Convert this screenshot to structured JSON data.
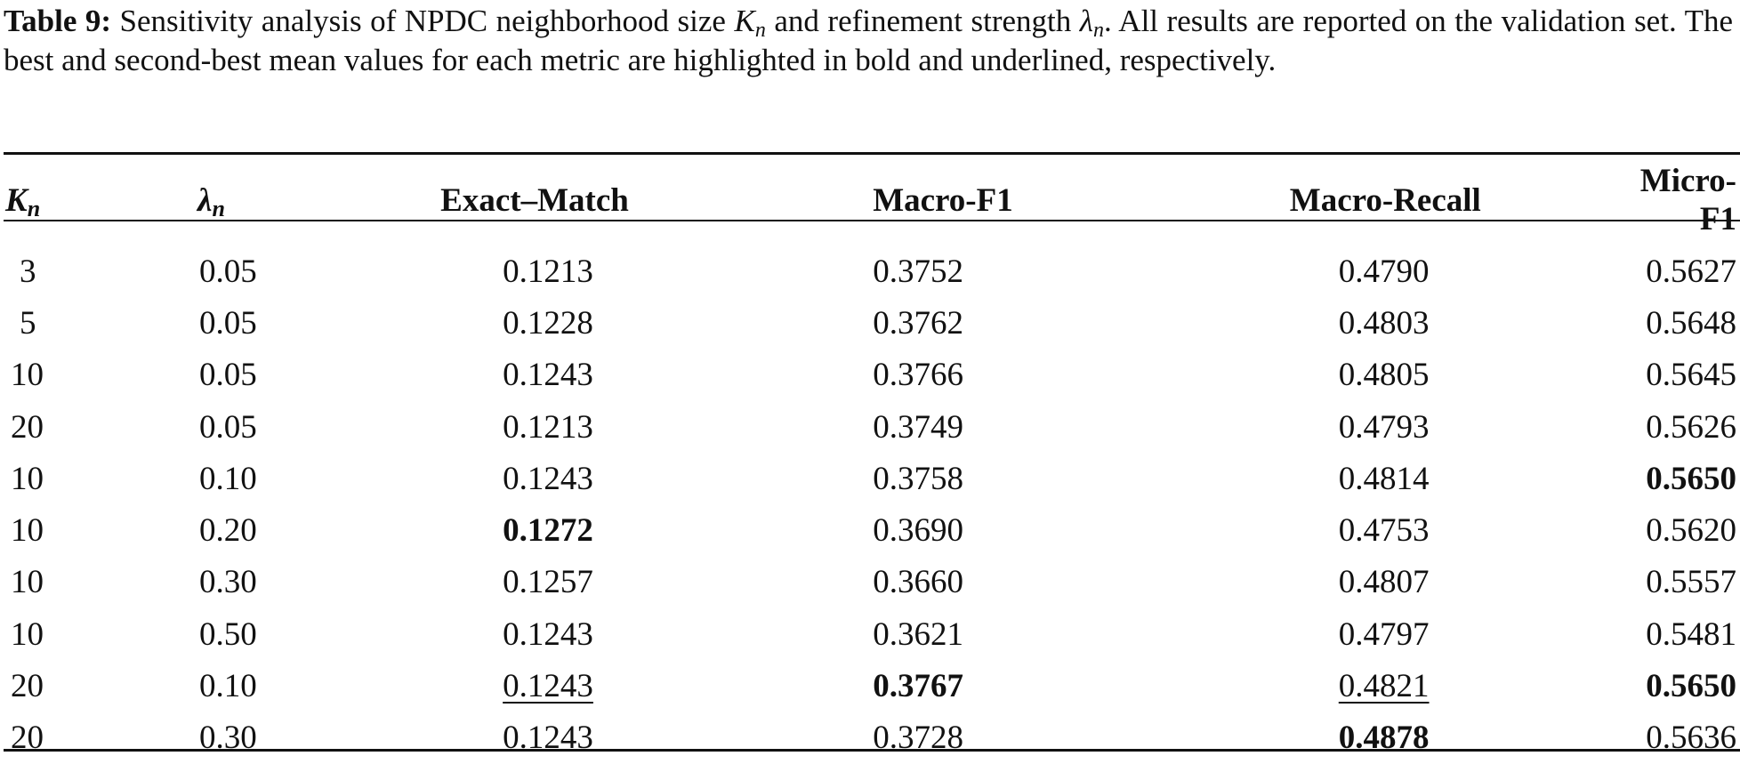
{
  "caption": {
    "label": "Table 9:",
    "text_before_k": "Sensitivity analysis of NPDC neighborhood size",
    "k_symbol": "K",
    "k_sub": "n",
    "text_between": "and refinement strength",
    "lambda_symbol": "λ",
    "lambda_sub": "n",
    "text_after": ". All results are reported on the validation set. The best and second-best mean values for each metric are highlighted in bold and underlined, respectively."
  },
  "table": {
    "headers": {
      "k_symbol": "K",
      "k_sub": "n",
      "lambda_symbol": "λ",
      "lambda_sub": "n",
      "exact_match": "Exact–Match",
      "macro_f1": "Macro-F1",
      "macro_recall": "Macro-Recall",
      "micro_f1": "Micro-F1"
    },
    "rows": [
      {
        "k": "3",
        "lambda": "0.05",
        "exact_match": "0.1213",
        "macro_f1": "0.3752",
        "macro_recall": "0.4790",
        "micro_f1": "0.5627"
      },
      {
        "k": "5",
        "lambda": "0.05",
        "exact_match": "0.1228",
        "macro_f1": "0.3762",
        "macro_recall": "0.4803",
        "micro_f1": "0.5648"
      },
      {
        "k": "10",
        "lambda": "0.05",
        "exact_match": "0.1243",
        "macro_f1": "0.3766",
        "macro_recall": "0.4805",
        "micro_f1": "0.5645"
      },
      {
        "k": "20",
        "lambda": "0.05",
        "exact_match": "0.1213",
        "macro_f1": "0.3749",
        "macro_recall": "0.4793",
        "micro_f1": "0.5626"
      },
      {
        "k": "10",
        "lambda": "0.10",
        "exact_match": "0.1243",
        "macro_f1": "0.3758",
        "macro_recall": "0.4814",
        "micro_f1": "0.5650"
      },
      {
        "k": "10",
        "lambda": "0.20",
        "exact_match": "0.1272",
        "macro_f1": "0.3690",
        "macro_recall": "0.4753",
        "micro_f1": "0.5620"
      },
      {
        "k": "10",
        "lambda": "0.30",
        "exact_match": "0.1257",
        "macro_f1": "0.3660",
        "macro_recall": "0.4807",
        "micro_f1": "0.5557"
      },
      {
        "k": "10",
        "lambda": "0.50",
        "exact_match": "0.1243",
        "macro_f1": "0.3621",
        "macro_recall": "0.4797",
        "micro_f1": "0.5481"
      },
      {
        "k": "20",
        "lambda": "0.10",
        "exact_match": "0.1243",
        "macro_f1": "0.3767",
        "macro_recall": "0.4821",
        "micro_f1": "0.5650"
      },
      {
        "k": "20",
        "lambda": "0.30",
        "exact_match": "0.1243",
        "macro_f1": "0.3728",
        "macro_recall": "0.4878",
        "micro_f1": "0.5636"
      }
    ]
  }
}
